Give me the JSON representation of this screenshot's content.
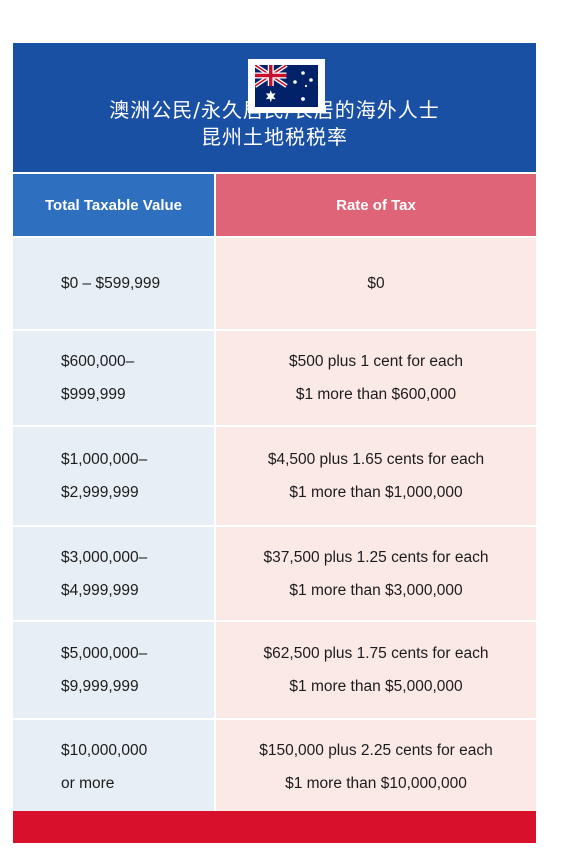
{
  "banner": {
    "line1": "澳洲公民/永久居民/长居的海外人士",
    "line2": "昆州土地税税率"
  },
  "flag": {
    "country": "Australia",
    "icon": "australia-flag-icon",
    "colors": {
      "blue": "#012169",
      "red": "#c8102e",
      "white": "#ffffff"
    }
  },
  "table": {
    "headers": {
      "left": "Total Taxable Value",
      "right": "Rate of Tax"
    },
    "rows": [
      {
        "value": [
          "$0 – $599,999"
        ],
        "rate": [
          "$0"
        ]
      },
      {
        "value": [
          "$600,000–",
          "$999,999"
        ],
        "rate": [
          "$500 plus 1 cent for each",
          "$1 more than $600,000"
        ]
      },
      {
        "value": [
          "$1,000,000–",
          "$2,999,999"
        ],
        "rate": [
          "$4,500 plus 1.65 cents for each",
          "$1 more than $1,000,000"
        ]
      },
      {
        "value": [
          "$3,000,000–",
          "$4,999,999"
        ],
        "rate": [
          "$37,500 plus 1.25 cents for each",
          "$1 more than $3,000,000"
        ]
      },
      {
        "value": [
          "$5,000,000–",
          "$9,999,999"
        ],
        "rate": [
          "$62,500 plus 1.75 cents for each",
          "$1 more than $5,000,000"
        ]
      },
      {
        "value": [
          "$10,000,000",
          "or more"
        ],
        "rate": [
          "$150,000 plus 2.25 cents for each",
          "$1 more than $10,000,000"
        ]
      }
    ]
  },
  "colors": {
    "banner_blue": "#1a50a4",
    "header_blue": "#2e6fc0",
    "header_pink": "#e06478",
    "cell_blue": "#e6eef6",
    "cell_pink": "#fbe9e6",
    "footer_red": "#d8102b"
  }
}
